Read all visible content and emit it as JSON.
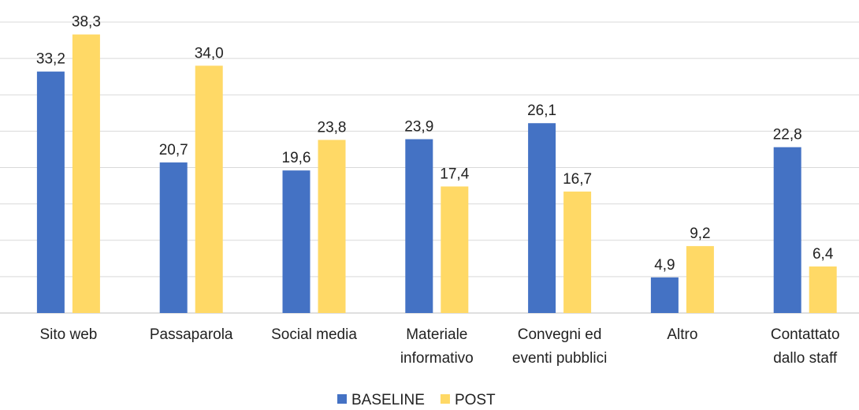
{
  "chart_data": {
    "type": "bar",
    "categories": [
      "Sito web",
      "Passaparola",
      "Social media",
      "Materiale\ninformativo",
      "Convegni ed\neventi pubblici",
      "Altro",
      "Contattato\ndallo staff"
    ],
    "series": [
      {
        "name": "BASELINE",
        "color": "#4472c4",
        "values": [
          33.2,
          20.7,
          19.6,
          23.9,
          26.1,
          4.9,
          22.8
        ],
        "value_labels": [
          "33,2",
          "20,7",
          "19,6",
          "23,9",
          "26,1",
          "4,9",
          "22,8"
        ]
      },
      {
        "name": "POST",
        "color": "#ffd966",
        "values": [
          38.3,
          34.0,
          23.8,
          17.4,
          16.7,
          9.2,
          6.4
        ],
        "value_labels": [
          "38,3",
          "34,0",
          "23,8",
          "17,4",
          "16,7",
          "9,2",
          "6,4"
        ]
      }
    ],
    "ylim": [
      0,
      40
    ],
    "yticks": [
      0,
      5,
      10,
      15,
      20,
      25,
      30,
      35,
      40
    ],
    "grid": true,
    "legend": "bottom"
  }
}
